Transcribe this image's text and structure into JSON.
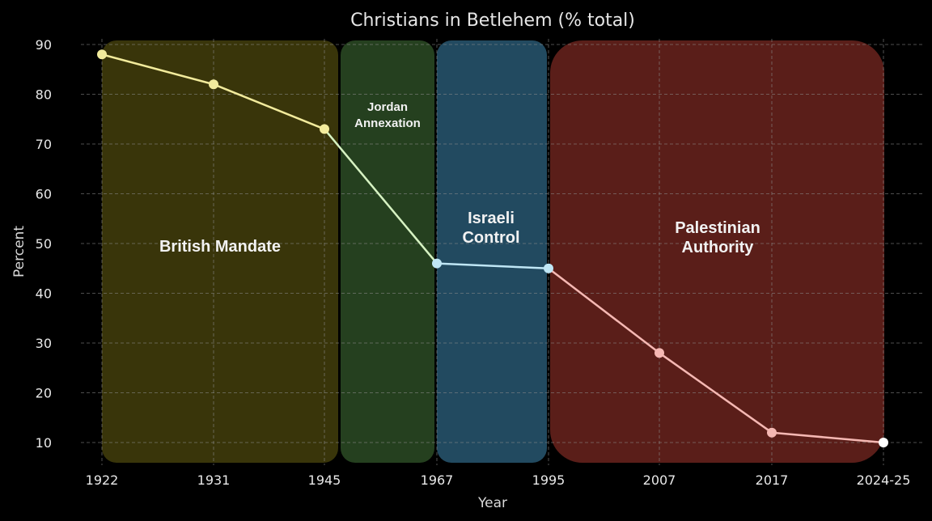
{
  "chart_data": {
    "type": "line",
    "title": "Christians in Betlehem (% total)",
    "xlabel": "Year",
    "ylabel": "Percent",
    "categories": [
      "1922",
      "1931",
      "1945",
      "1967",
      "1995",
      "2007",
      "2017",
      "2024-25"
    ],
    "values": [
      88,
      82,
      73,
      46,
      45,
      28,
      12,
      10
    ],
    "yticks": [
      10,
      20,
      30,
      40,
      50,
      60,
      70,
      80,
      90
    ],
    "ylim": [
      5,
      92
    ],
    "grid": true,
    "background": "#000000",
    "periods": [
      {
        "lines": [
          "British Mandate"
        ],
        "color": "#39350a",
        "line_color": "#f2eb9c"
      },
      {
        "lines": [
          "Jordan",
          "Annexation"
        ],
        "color": "#25401f",
        "line_color": "#d6f2c2"
      },
      {
        "lines": [
          "Israeli",
          "Control"
        ],
        "color": "#224a60",
        "line_color": "#bfe6f5"
      },
      {
        "lines": [
          "Palestinian",
          "Authority"
        ],
        "color": "#5a1e19",
        "line_color": "#f5b8b3"
      }
    ]
  }
}
